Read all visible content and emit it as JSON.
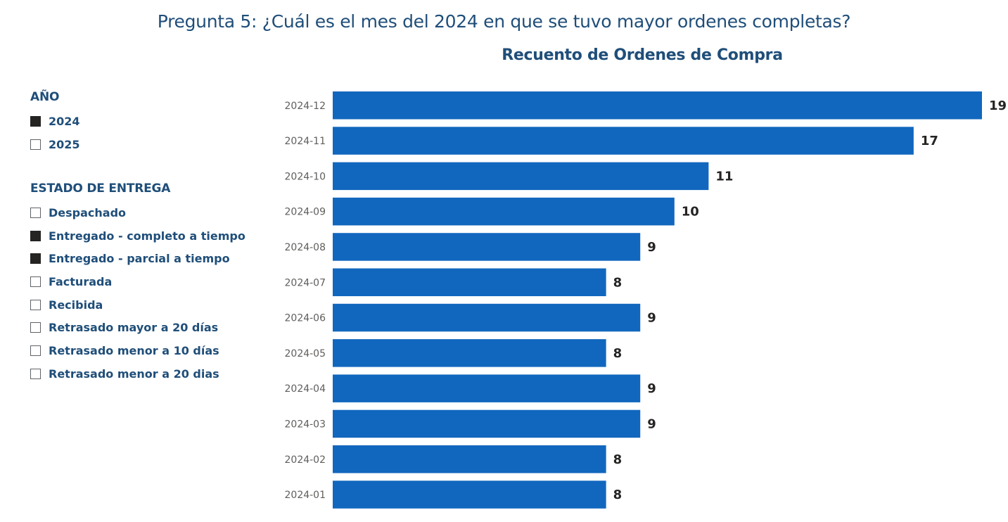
{
  "page": {
    "title": "Pregunta 5: ¿Cuál es el mes del 2024 en que se tuvo mayor ordenes completas?"
  },
  "slicers": {
    "year": {
      "header": "AÑO",
      "items": [
        {
          "label": "2024",
          "checked": true
        },
        {
          "label": "2025",
          "checked": false
        }
      ]
    },
    "status": {
      "header": "ESTADO DE ENTREGA",
      "items": [
        {
          "label": "Despachado",
          "checked": false
        },
        {
          "label": "Entregado - completo a tiempo",
          "checked": true
        },
        {
          "label": "Entregado - parcial a tiempo",
          "checked": true
        },
        {
          "label": "Facturada",
          "checked": false
        },
        {
          "label": "Recibida",
          "checked": false
        },
        {
          "label": "Retrasado mayor a 20 días",
          "checked": false
        },
        {
          "label": "Retrasado menor a 10 días",
          "checked": false
        },
        {
          "label": "Retrasado menor a 20 dias",
          "checked": false
        }
      ]
    }
  },
  "chart_data": {
    "type": "bar",
    "orientation": "horizontal",
    "title": "Recuento de Ordenes de Compra",
    "xlabel": "",
    "ylabel": "",
    "categories": [
      "2024-12",
      "2024-11",
      "2024-10",
      "2024-09",
      "2024-08",
      "2024-07",
      "2024-06",
      "2024-05",
      "2024-04",
      "2024-03",
      "2024-02",
      "2024-01"
    ],
    "values": [
      19,
      17,
      11,
      10,
      9,
      8,
      9,
      8,
      9,
      9,
      8,
      8
    ],
    "xlim": [
      0,
      19
    ],
    "data_labels": true,
    "grid": false,
    "legend": "none",
    "bar_color": "#1167be"
  }
}
